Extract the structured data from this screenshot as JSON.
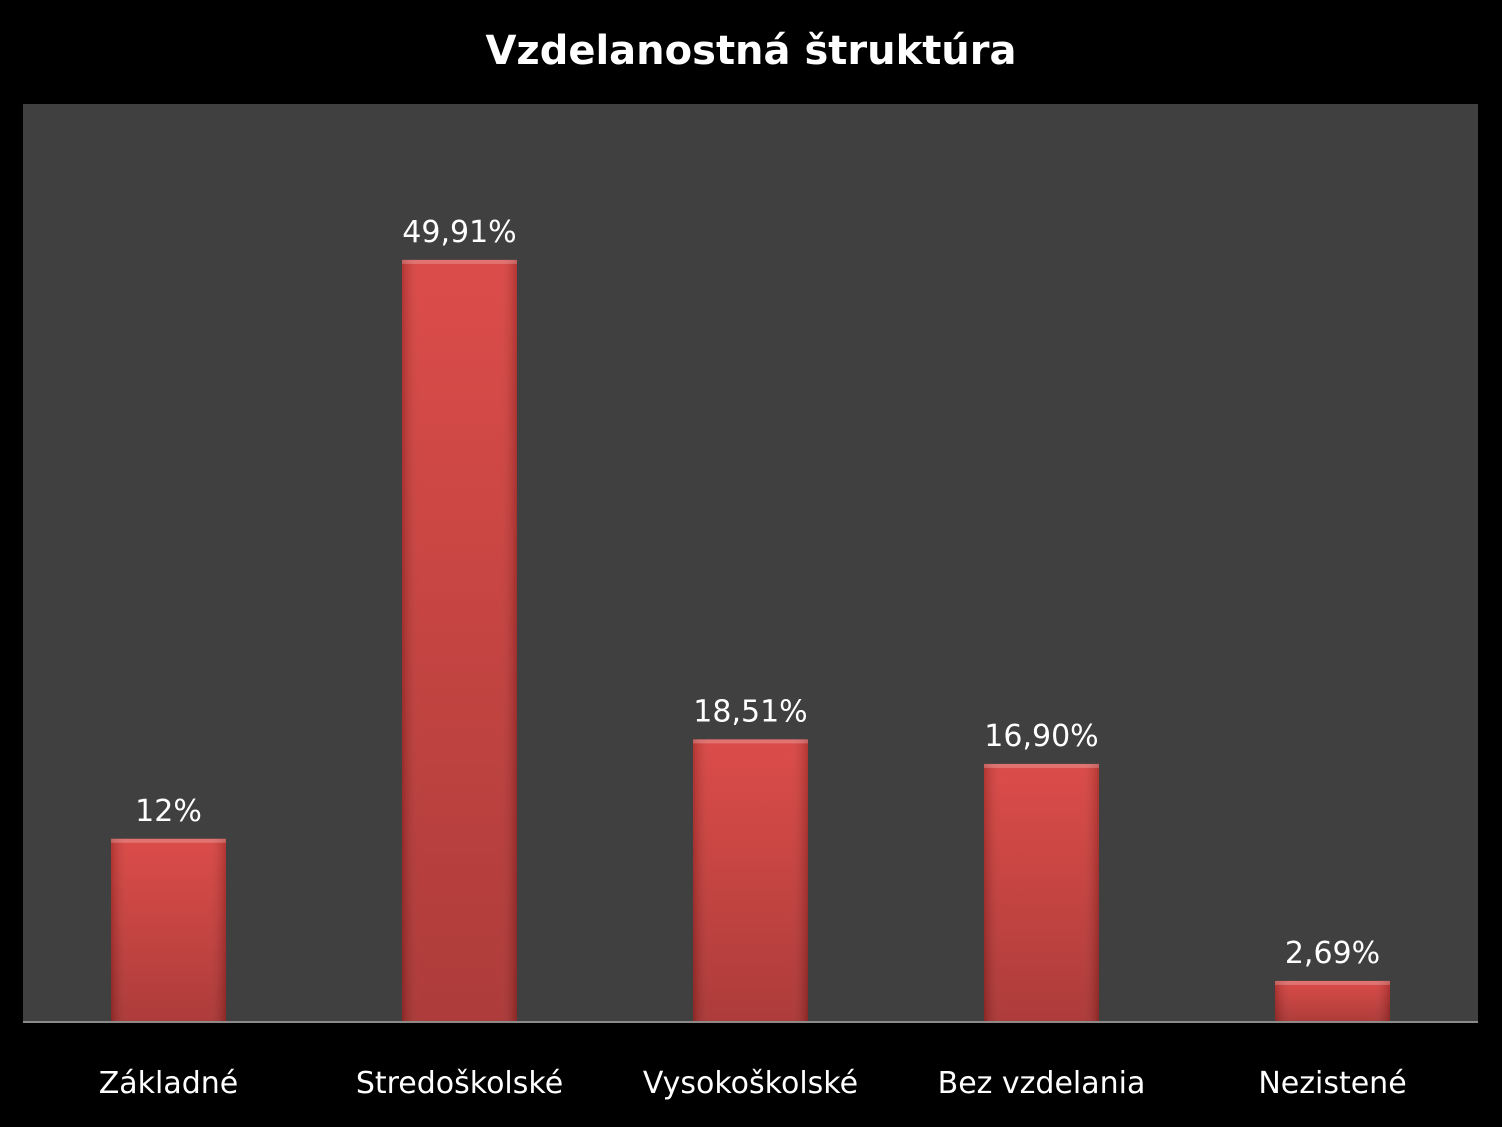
{
  "chart_data": {
    "type": "bar",
    "title": "Vzdelanostná štruktúra",
    "categories": [
      "Základné",
      "Stredoškolské",
      "Vysokoškolské",
      "Bez vzdelania",
      "Nezistené"
    ],
    "values": [
      12,
      49.91,
      18.51,
      16.9,
      2.69
    ],
    "data_labels": [
      "12%",
      "49,91%",
      "18,51%",
      "16,90%",
      "2,69%"
    ],
    "xlabel": "",
    "ylabel": "",
    "ylim": [
      0,
      55
    ],
    "grid": false,
    "legend": "none",
    "colors": {
      "background": "#000000",
      "plot_area": "#404040",
      "bar": "#d9413e",
      "bar_dark": "#a8302e",
      "text": "#ffffff"
    }
  }
}
